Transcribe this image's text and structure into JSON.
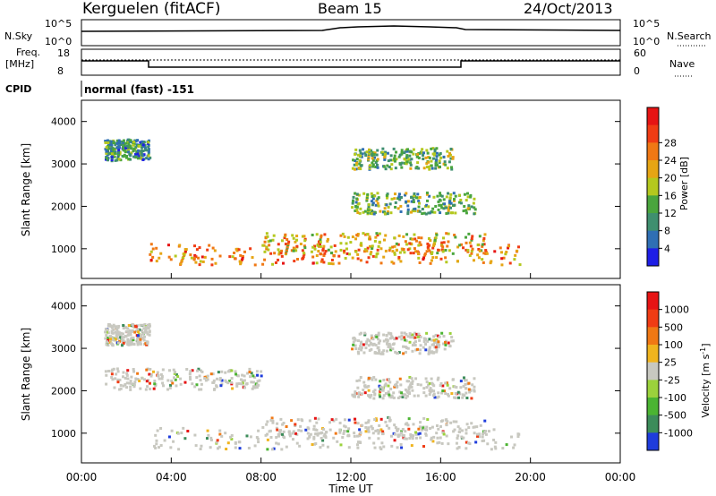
{
  "header": {
    "station": "Kerguelen (fitACF)",
    "beam": "Beam 15",
    "date": "24/Oct/2013"
  },
  "top_panels": {
    "nsky_label": "N.Sky",
    "nsky_ticks": [
      "10^5",
      "10^0"
    ],
    "nsearch_label": "N.Search",
    "nsearch_ticks": [
      "10^5",
      "10^0"
    ],
    "freq_label": "Freq.",
    "freq_unit": "[MHz]",
    "freq_ticks": [
      "18",
      "8"
    ],
    "nave_label": "Nave",
    "nave_ticks": [
      "60",
      "0"
    ],
    "cpid_label": "CPID",
    "cpid_text": "normal (fast) -151"
  },
  "chart_data": [
    {
      "type": "heatmap",
      "panel": "power",
      "ylabel": "Slant Range [km]",
      "yticks": [
        1000,
        2000,
        3000,
        4000
      ],
      "ylim": [
        300,
        4500
      ],
      "xlim": [
        0,
        24
      ],
      "colorbar": {
        "label": "Power [dB]",
        "ticks": [
          4,
          8,
          12,
          16,
          20,
          24,
          28
        ],
        "colors": [
          "#1e1ee6",
          "#2f6fb4",
          "#3f8f6f",
          "#4aa53d",
          "#b4c81e",
          "#e6a514",
          "#f07814",
          "#f03c14",
          "#e61414"
        ]
      },
      "bands": [
        {
          "t0": 3,
          "t1": 19.5,
          "r": 900,
          "level": 24
        },
        {
          "t0": 8,
          "t1": 18,
          "r": 1150,
          "level": 20
        },
        {
          "t0": 12,
          "t1": 17.5,
          "r": 2100,
          "level": 12
        },
        {
          "t0": 1,
          "t1": 3,
          "r": 3350,
          "level": 8
        },
        {
          "t0": 12,
          "t1": 16.5,
          "r": 3150,
          "level": 12
        }
      ]
    },
    {
      "type": "heatmap",
      "panel": "velocity",
      "ylabel": "Slant Range [km]",
      "yticks": [
        1000,
        2000,
        3000,
        4000
      ],
      "ylim": [
        300,
        4500
      ],
      "xlim": [
        0,
        24
      ],
      "colorbar": {
        "label": "Velocity [m s",
        "label_sup": "-1",
        "label_close": "]",
        "ticks": [
          "1000",
          "500",
          "100",
          "25",
          "-25",
          "-100",
          "-500",
          "-1000"
        ],
        "colors": [
          "#1e3cdc",
          "#3c8c5a",
          "#4bb432",
          "#9bd23c",
          "#c8c8c0",
          "#f0b41e",
          "#f07814",
          "#f03c14",
          "#e61414"
        ]
      },
      "xticks": [
        "00:00",
        "04:00",
        "08:00",
        "12:00",
        "16:00",
        "20:00",
        "00:00"
      ],
      "xlabel": "Time UT"
    }
  ],
  "colors": {
    "ground_scatter": "#c8c8c0",
    "axis": "#000000"
  }
}
